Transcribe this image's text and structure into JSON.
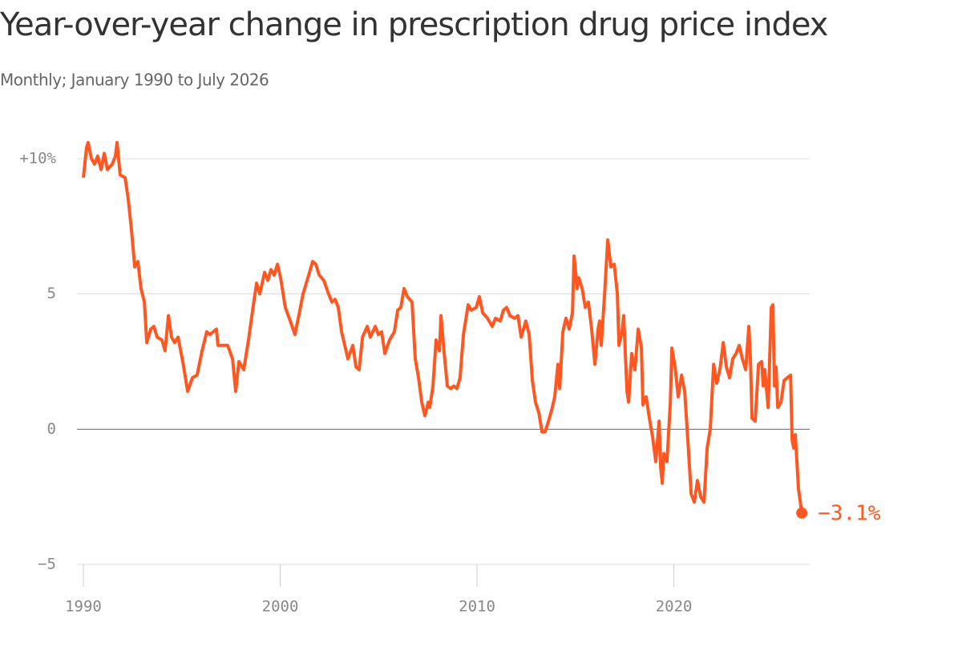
{
  "chart_data": {
    "type": "line",
    "title": "Year-over-year change in prescription drug price index",
    "subtitle": "Monthly; January 1990 to July 2026",
    "annotation": "−3.1%",
    "xlim": [
      1990,
      2026.9
    ],
    "xticks": [
      1990,
      2000,
      2010,
      2020
    ],
    "ylim": [
      -5,
      10
    ],
    "yticks": [
      {
        "value": 10,
        "label": "+10%"
      },
      5,
      0,
      {
        "value": -5,
        "label": "−5"
      }
    ],
    "grid": true,
    "x": [
      1990.0,
      1990.16,
      1990.24,
      1990.41,
      1990.57,
      1990.73,
      1990.9,
      1991.06,
      1991.22,
      1991.47,
      1991.63,
      1991.71,
      1991.87,
      1992.12,
      1992.28,
      1992.44,
      1992.61,
      1992.77,
      1992.93,
      1993.1,
      1993.22,
      1993.42,
      1993.58,
      1993.75,
      1993.99,
      1994.15,
      1994.32,
      1994.48,
      1994.64,
      1994.81,
      1995.05,
      1995.3,
      1995.54,
      1995.78,
      1996.03,
      1996.27,
      1996.44,
      1996.6,
      1996.76,
      1996.84,
      1997.09,
      1997.33,
      1997.58,
      1997.74,
      1997.9,
      1998.15,
      1998.39,
      1998.64,
      1998.8,
      1998.96,
      1999.21,
      1999.37,
      1999.53,
      1999.69,
      1999.86,
      2000.02,
      2000.26,
      2000.51,
      2000.75,
      2001.0,
      2001.16,
      2001.41,
      2001.65,
      2001.81,
      2001.98,
      2002.22,
      2002.46,
      2002.63,
      2002.79,
      2002.95,
      2003.12,
      2003.28,
      2003.44,
      2003.69,
      2003.85,
      2004.01,
      2004.18,
      2004.42,
      2004.58,
      2004.83,
      2004.99,
      2005.15,
      2005.32,
      2005.56,
      2005.8,
      2005.97,
      2006.13,
      2006.29,
      2006.46,
      2006.7,
      2006.86,
      2007.03,
      2007.19,
      2007.35,
      2007.52,
      2007.6,
      2007.76,
      2007.92,
      2008.09,
      2008.17,
      2008.33,
      2008.49,
      2008.66,
      2008.82,
      2008.98,
      2009.14,
      2009.31,
      2009.55,
      2009.71,
      2009.96,
      2010.12,
      2010.29,
      2010.53,
      2010.77,
      2010.94,
      2011.18,
      2011.34,
      2011.51,
      2011.67,
      2011.91,
      2012.08,
      2012.24,
      2012.48,
      2012.65,
      2012.81,
      2012.97,
      2013.14,
      2013.3,
      2013.46,
      2013.63,
      2013.79,
      2013.95,
      2014.11,
      2014.2,
      2014.36,
      2014.52,
      2014.68,
      2014.85,
      2014.93,
      2015.09,
      2015.17,
      2015.34,
      2015.5,
      2015.66,
      2015.82,
      2015.99,
      2016.15,
      2016.23,
      2016.31,
      2016.48,
      2016.64,
      2016.8,
      2016.97,
      2017.13,
      2017.21,
      2017.37,
      2017.45,
      2017.62,
      2017.7,
      2017.86,
      2018.02,
      2018.19,
      2018.35,
      2018.43,
      2018.59,
      2018.76,
      2018.92,
      2019.08,
      2019.25,
      2019.33,
      2019.41,
      2019.49,
      2019.57,
      2019.65,
      2019.82,
      2019.9,
      2020.06,
      2020.22,
      2020.39,
      2020.55,
      2020.71,
      2020.88,
      2021.04,
      2021.2,
      2021.36,
      2021.53,
      2021.69,
      2021.85,
      2022.02,
      2022.18,
      2022.34,
      2022.51,
      2022.67,
      2022.83,
      2022.99,
      2023.16,
      2023.32,
      2023.48,
      2023.65,
      2023.81,
      2023.89,
      2023.97,
      2024.13,
      2024.3,
      2024.46,
      2024.54,
      2024.62,
      2024.79,
      2024.95,
      2025.03,
      2025.11,
      2025.19,
      2025.28,
      2025.44,
      2025.6,
      2025.76,
      2025.93,
      2026.01,
      2026.09,
      2026.17,
      2026.33,
      2026.5
    ],
    "series": [
      {
        "color": "#ff5722",
        "values": [
          9.3,
          10.4,
          10.6,
          10.0,
          9.8,
          10.1,
          9.6,
          10.2,
          9.6,
          9.8,
          10.1,
          10.6,
          9.4,
          9.3,
          8.5,
          7.4,
          6.0,
          6.2,
          5.2,
          4.7,
          3.2,
          3.7,
          3.8,
          3.4,
          3.3,
          2.9,
          4.2,
          3.4,
          3.2,
          3.4,
          2.5,
          1.4,
          1.9,
          2.0,
          2.9,
          3.6,
          3.5,
          3.6,
          3.7,
          3.1,
          3.1,
          3.1,
          2.6,
          1.4,
          2.5,
          2.2,
          3.3,
          4.6,
          5.4,
          5.0,
          5.8,
          5.5,
          5.9,
          5.7,
          6.1,
          5.6,
          4.5,
          4.0,
          3.5,
          4.4,
          5.0,
          5.6,
          6.2,
          6.1,
          5.7,
          5.5,
          5.0,
          4.7,
          4.8,
          4.5,
          3.6,
          3.1,
          2.6,
          3.1,
          2.3,
          2.2,
          3.4,
          3.8,
          3.4,
          3.8,
          3.5,
          3.6,
          2.8,
          3.3,
          3.6,
          4.4,
          4.5,
          5.2,
          4.9,
          4.7,
          2.6,
          1.9,
          1.0,
          0.5,
          1.0,
          0.8,
          1.6,
          3.3,
          2.9,
          4.2,
          2.8,
          1.6,
          1.5,
          1.6,
          1.5,
          1.9,
          3.5,
          4.6,
          4.4,
          4.5,
          4.9,
          4.3,
          4.1,
          3.8,
          4.1,
          4.0,
          4.4,
          4.5,
          4.2,
          4.1,
          4.2,
          3.4,
          4.0,
          3.5,
          1.8,
          1.0,
          0.6,
          -0.1,
          -0.1,
          0.3,
          0.7,
          1.2,
          2.4,
          1.5,
          3.6,
          4.1,
          3.7,
          4.3,
          6.4,
          5.2,
          5.6,
          5.2,
          4.5,
          4.7,
          3.7,
          2.4,
          3.7,
          4.0,
          3.1,
          5.0,
          7.0,
          6.0,
          6.1,
          5.0,
          3.1,
          3.6,
          4.2,
          1.4,
          1.0,
          2.8,
          2.2,
          3.7,
          3.0,
          0.9,
          1.2,
          0.4,
          -0.3,
          -1.2,
          0.3,
          -1.4,
          -2.0,
          -0.9,
          -1.0,
          -1.2,
          1.0,
          3.0,
          2.3,
          1.2,
          2.0,
          1.4,
          -0.4,
          -2.4,
          -2.7,
          -1.9,
          -2.5,
          -2.7,
          -0.7,
          0.0,
          2.4,
          1.7,
          2.2,
          3.2,
          2.3,
          1.9,
          2.6,
          2.8,
          3.1,
          2.6,
          2.2,
          3.8,
          2.6,
          0.4,
          0.3,
          2.4,
          2.5,
          1.6,
          2.2,
          0.8,
          4.5,
          4.6,
          1.6,
          2.3,
          0.8,
          1.0,
          1.8,
          1.9,
          2.0,
          -0.4,
          -0.7,
          -0.2,
          -2.2,
          -3.1
        ]
      }
    ]
  }
}
